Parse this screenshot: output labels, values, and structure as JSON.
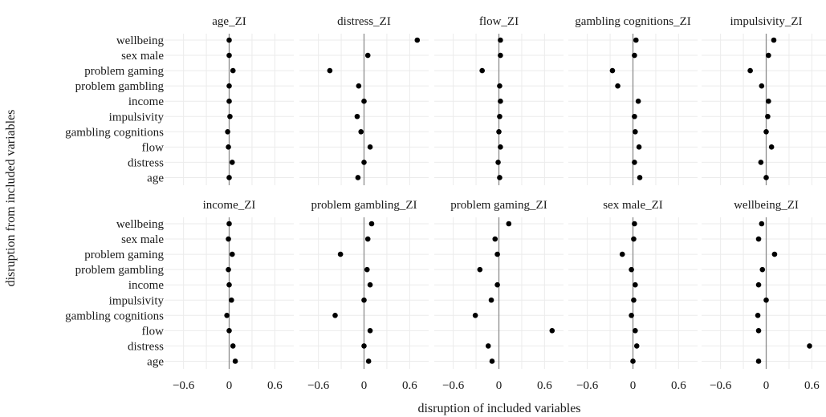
{
  "chart_data": {
    "type": "scatter",
    "xlabel": "disruption of included variables",
    "ylabel": "disruption from included variables",
    "xlim": [
      -0.85,
      0.85
    ],
    "xticks": [
      -0.6,
      0,
      0.6
    ],
    "xtick_labels": [
      "−0.6",
      "0",
      "0.6"
    ],
    "grid": true,
    "categories": [
      "wellbeing",
      "sex male",
      "problem gaming",
      "problem gambling",
      "income",
      "impulsivity",
      "gambling cognitions",
      "flow",
      "distress",
      "age"
    ],
    "panels": [
      {
        "name": "age_ZI",
        "values": [
          0.0,
          0.0,
          0.05,
          0.0,
          0.0,
          0.01,
          -0.02,
          -0.01,
          0.04,
          0.0
        ]
      },
      {
        "name": "distress_ZI",
        "values": [
          0.7,
          0.05,
          -0.45,
          -0.07,
          0.0,
          -0.09,
          -0.04,
          0.08,
          0.0,
          -0.08
        ]
      },
      {
        "name": "flow_ZI",
        "values": [
          0.02,
          0.02,
          -0.22,
          0.01,
          0.02,
          0.01,
          0.0,
          0.02,
          -0.01,
          0.01
        ]
      },
      {
        "name": "gambling cognitions_ZI",
        "values": [
          0.04,
          0.02,
          -0.27,
          -0.2,
          0.07,
          0.02,
          0.03,
          0.08,
          0.02,
          0.09
        ]
      },
      {
        "name": "impulsivity_ZI",
        "values": [
          0.1,
          0.03,
          -0.21,
          -0.06,
          0.03,
          0.02,
          0.0,
          0.07,
          -0.07,
          0.0
        ]
      },
      {
        "name": "income_ZI",
        "values": [
          0.0,
          -0.01,
          0.04,
          -0.01,
          0.0,
          0.03,
          -0.03,
          0.0,
          0.05,
          0.08
        ]
      },
      {
        "name": "problem gambling_ZI",
        "values": [
          0.1,
          0.05,
          -0.31,
          0.04,
          0.08,
          0.0,
          -0.38,
          0.08,
          0.0,
          0.06
        ]
      },
      {
        "name": "problem gaming_ZI",
        "values": [
          0.13,
          -0.05,
          -0.02,
          -0.25,
          -0.02,
          -0.1,
          -0.31,
          0.7,
          -0.14,
          -0.09
        ]
      },
      {
        "name": "sex male_ZI",
        "values": [
          0.02,
          0.01,
          -0.14,
          -0.02,
          0.03,
          0.01,
          -0.02,
          0.03,
          0.05,
          0.0
        ]
      },
      {
        "name": "wellbeing_ZI",
        "values": [
          -0.06,
          -0.1,
          0.11,
          -0.05,
          -0.1,
          0.0,
          -0.11,
          -0.1,
          0.57,
          -0.1
        ]
      }
    ]
  }
}
